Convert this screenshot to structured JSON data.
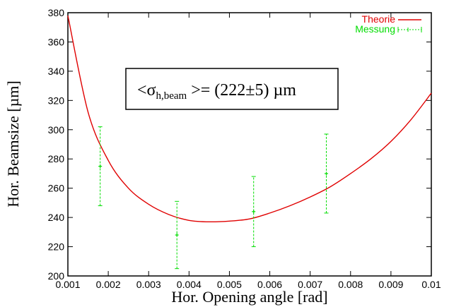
{
  "chart_data": {
    "type": "scatter",
    "title": "",
    "xlabel": "Hor. Opening angle [rad]",
    "ylabel": "Hor. Beamsize [µm]",
    "xlim": [
      0.001,
      0.01
    ],
    "ylim": [
      200,
      380
    ],
    "xticks": [
      0.001,
      0.002,
      0.003,
      0.004,
      0.005,
      0.006,
      0.007,
      0.008,
      0.009,
      0.01
    ],
    "xtick_labels": [
      "0.001",
      "0.002",
      "0.003",
      "0.004",
      "0.005",
      "0.006",
      "0.007",
      "0.008",
      "0.009",
      "0.01"
    ],
    "yticks": [
      200,
      220,
      240,
      260,
      280,
      300,
      320,
      340,
      360,
      380
    ],
    "ytick_labels": [
      "200",
      "220",
      "240",
      "260",
      "280",
      "300",
      "320",
      "340",
      "360",
      "380"
    ],
    "grid": false,
    "legend_position": "top-right",
    "series": [
      {
        "name": "Theorie",
        "kind": "line",
        "color": "#e00000",
        "x": [
          0.001,
          0.0015,
          0.002,
          0.0025,
          0.003,
          0.0035,
          0.004,
          0.0045,
          0.005,
          0.0055,
          0.006,
          0.0065,
          0.007,
          0.0075,
          0.008,
          0.0085,
          0.009,
          0.0095,
          0.01
        ],
        "y": [
          378,
          312,
          279,
          260,
          249,
          242,
          238,
          237,
          237.5,
          239,
          243,
          248,
          254,
          261,
          270,
          280,
          292,
          307,
          325
        ]
      },
      {
        "name": "Messung",
        "kind": "errorbar",
        "color": "#00dd00",
        "x": [
          0.0018,
          0.0037,
          0.0056,
          0.0074
        ],
        "y": [
          275,
          228,
          244,
          270
        ],
        "yerr_low": [
          248,
          205,
          220,
          243
        ],
        "yerr_high": [
          302,
          251,
          268,
          297
        ]
      }
    ],
    "annotation": {
      "prefix": "<σ",
      "subscript": "h,beam",
      "suffix": " >= (222±5) µm"
    }
  }
}
